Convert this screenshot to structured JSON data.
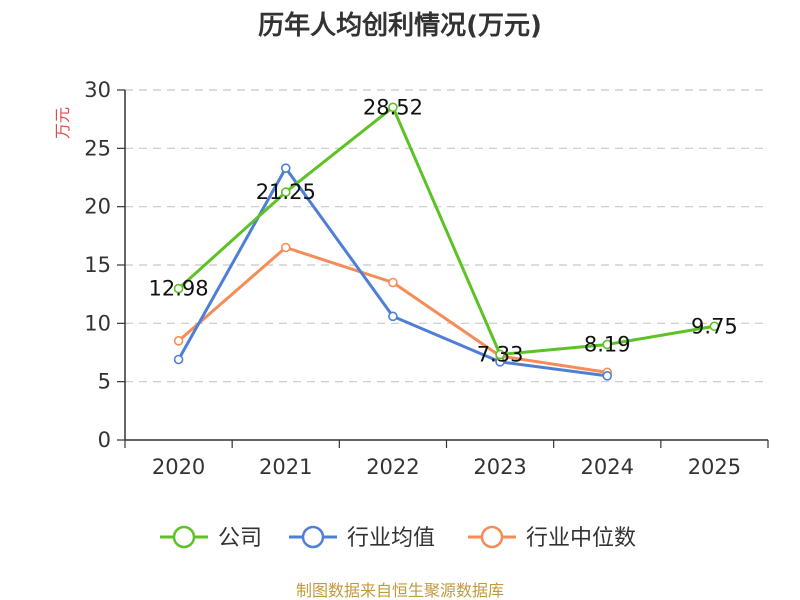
{
  "colors": {
    "company": "#5cc225",
    "industry_avg": "#4e7fd6",
    "industry_median": "#f68c58"
  },
  "source": "制图数据来自恒生聚源数据库",
  "chart_data": {
    "type": "line",
    "title": "历年人均创利情况(万元)",
    "xlabel": "",
    "ylabel": "万元",
    "categories": [
      "2020",
      "2021",
      "2022",
      "2023",
      "2024",
      "2025"
    ],
    "ylim": [
      0,
      30
    ],
    "yticks": [
      0,
      5,
      10,
      15,
      20,
      25,
      30
    ],
    "grid": true,
    "legend_position": "bottom",
    "series": [
      {
        "name": "公司",
        "color_key": "company",
        "values": [
          12.98,
          21.25,
          28.52,
          7.33,
          8.19,
          9.75
        ],
        "show_labels": true
      },
      {
        "name": "行业均值",
        "color_key": "industry_avg",
        "values": [
          6.9,
          23.3,
          10.6,
          6.7,
          5.5,
          null
        ],
        "show_labels": false
      },
      {
        "name": "行业中位数",
        "color_key": "industry_median",
        "values": [
          8.5,
          16.5,
          13.5,
          7.2,
          5.8,
          null
        ],
        "show_labels": false
      }
    ]
  }
}
